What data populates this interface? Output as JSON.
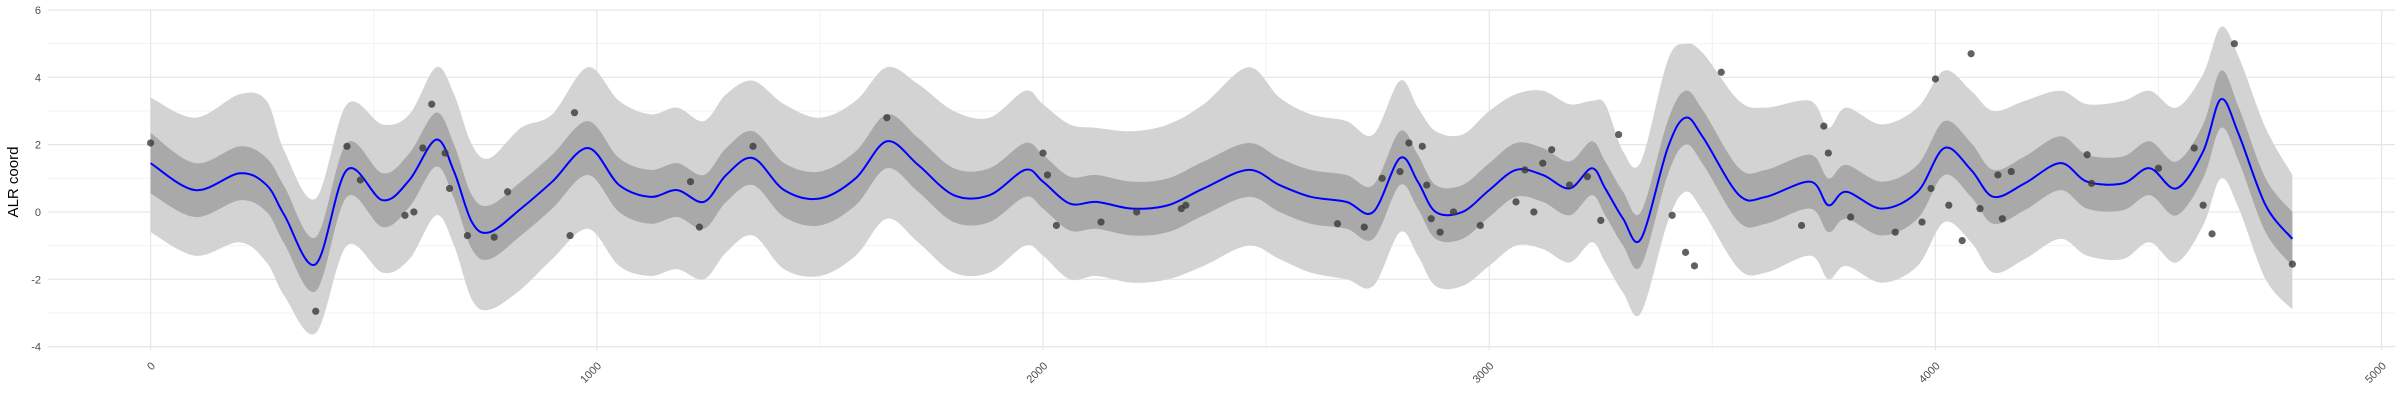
{
  "chart_data": {
    "type": "line",
    "title": "",
    "xlabel": "",
    "ylabel": "ALR coord",
    "xlim": [
      -230,
      5030
    ],
    "ylim": [
      -4.1,
      6.0
    ],
    "x_ticks": [
      0,
      1000,
      2000,
      3000,
      4000,
      5000
    ],
    "x_tick_labels": [
      "0",
      "1000",
      "2000",
      "3000",
      "4000",
      "5000"
    ],
    "y_ticks": [
      -4,
      -2,
      0,
      2,
      4,
      6
    ],
    "y_tick_labels": [
      "-4",
      "-2",
      "0",
      "2",
      "4",
      "6"
    ],
    "grid": true,
    "legend": "none",
    "colors": {
      "mean_line": "#0000ff",
      "inner_band": "#a9a9a9",
      "outer_band": "#d3d3d3",
      "points": "#3a3a3a",
      "grid_major": "#e6e6e6",
      "grid_minor": "#f2f2f2"
    },
    "series": [
      {
        "kind": "mean_with_bands",
        "x": [
          0,
          100,
          200,
          260,
          300,
          370,
          440,
          520,
          580,
          640,
          680,
          720,
          760,
          830,
          900,
          980,
          1050,
          1120,
          1180,
          1240,
          1290,
          1350,
          1420,
          1500,
          1580,
          1650,
          1720,
          1800,
          1880,
          1960,
          2000,
          2060,
          2120,
          2200,
          2280,
          2360,
          2460,
          2530,
          2600,
          2680,
          2740,
          2800,
          2840,
          2880,
          2940,
          3000,
          3060,
          3120,
          3180,
          3230,
          3260,
          3300,
          3340,
          3400,
          3440,
          3480,
          3560,
          3620,
          3720,
          3760,
          3800,
          3880,
          3960,
          4020,
          4080,
          4130,
          4200,
          4280,
          4340,
          4420,
          4480,
          4540,
          4600,
          4640,
          4680,
          4740,
          4800
        ],
        "mean": [
          1.45,
          0.65,
          1.15,
          0.8,
          -0.1,
          -1.55,
          1.25,
          0.35,
          0.95,
          2.15,
          1.2,
          -0.3,
          -0.6,
          0.1,
          0.9,
          1.9,
          0.8,
          0.45,
          0.65,
          0.3,
          1.1,
          1.6,
          0.65,
          0.4,
          1.0,
          2.1,
          1.4,
          0.5,
          0.5,
          1.25,
          0.9,
          0.25,
          0.3,
          0.1,
          0.2,
          0.7,
          1.25,
          0.8,
          0.45,
          0.3,
          0.0,
          1.6,
          0.9,
          0.0,
          0.0,
          0.65,
          1.25,
          1.1,
          0.7,
          1.3,
          0.7,
          -0.2,
          -0.8,
          1.9,
          2.8,
          2.2,
          0.5,
          0.45,
          0.9,
          0.2,
          0.6,
          0.1,
          0.6,
          1.9,
          1.25,
          0.45,
          0.85,
          1.45,
          0.9,
          0.85,
          1.3,
          0.7,
          1.8,
          3.35,
          2.3,
          0.2,
          -0.8
        ],
        "inner_lo": [
          0.55,
          -0.15,
          0.35,
          0.0,
          -0.95,
          -2.35,
          0.45,
          -0.45,
          0.15,
          1.35,
          0.4,
          -1.1,
          -1.4,
          -0.7,
          0.1,
          1.1,
          0.0,
          -0.35,
          -0.15,
          -0.5,
          0.3,
          0.8,
          -0.15,
          -0.4,
          0.2,
          1.3,
          0.6,
          -0.3,
          -0.3,
          0.45,
          0.1,
          -0.55,
          -0.5,
          -0.7,
          -0.6,
          -0.1,
          0.45,
          0.0,
          -0.35,
          -0.5,
          -0.8,
          0.8,
          0.1,
          -0.8,
          -0.8,
          -0.15,
          0.45,
          0.3,
          -0.1,
          0.5,
          -0.1,
          -1.0,
          -1.6,
          1.1,
          2.0,
          1.4,
          -0.3,
          -0.35,
          0.1,
          -0.6,
          -0.2,
          -0.7,
          -0.2,
          1.1,
          0.45,
          -0.35,
          0.05,
          0.65,
          0.1,
          0.05,
          0.5,
          -0.1,
          1.0,
          2.5,
          1.5,
          -0.6,
          -1.6
        ],
        "inner_hi": [
          2.35,
          1.45,
          1.95,
          1.6,
          0.75,
          -0.75,
          2.05,
          1.15,
          1.75,
          2.95,
          2.0,
          0.5,
          0.2,
          0.9,
          1.7,
          2.7,
          1.6,
          1.25,
          1.45,
          1.1,
          1.9,
          2.4,
          1.45,
          1.2,
          1.8,
          2.9,
          2.2,
          1.3,
          1.3,
          2.05,
          1.7,
          1.05,
          1.1,
          0.9,
          1.0,
          1.5,
          2.05,
          1.6,
          1.25,
          1.1,
          0.8,
          2.4,
          1.7,
          0.8,
          0.8,
          1.45,
          2.05,
          1.9,
          1.5,
          2.1,
          1.5,
          0.6,
          0.0,
          2.7,
          3.6,
          3.0,
          1.3,
          1.25,
          1.7,
          1.0,
          1.4,
          0.9,
          1.4,
          2.7,
          2.05,
          1.25,
          1.65,
          2.25,
          1.7,
          1.65,
          2.1,
          1.5,
          2.6,
          4.2,
          3.1,
          1.0,
          0.0
        ],
        "outer_lo": [
          -0.6,
          -1.3,
          -0.9,
          -1.5,
          -2.5,
          -3.6,
          -1.0,
          -1.8,
          -1.4,
          -0.1,
          -1.0,
          -2.6,
          -2.9,
          -2.3,
          -1.4,
          -0.5,
          -1.6,
          -1.9,
          -1.7,
          -2.0,
          -1.2,
          -0.7,
          -1.7,
          -1.9,
          -1.3,
          -0.2,
          -0.9,
          -1.8,
          -1.8,
          -1.0,
          -1.3,
          -2.0,
          -1.9,
          -2.1,
          -2.0,
          -1.6,
          -1.0,
          -1.4,
          -1.8,
          -2.0,
          -2.2,
          -0.6,
          -1.3,
          -2.2,
          -2.2,
          -1.6,
          -1.0,
          -1.1,
          -1.5,
          -0.9,
          -1.5,
          -2.4,
          -3.0,
          -0.3,
          0.6,
          0.0,
          -1.7,
          -1.8,
          -1.3,
          -2.0,
          -1.6,
          -2.1,
          -1.6,
          -0.3,
          -0.9,
          -1.8,
          -1.4,
          -0.8,
          -1.3,
          -1.4,
          -0.9,
          -1.5,
          -0.4,
          1.0,
          0.1,
          -2.0,
          -2.9
        ],
        "outer_hi": [
          3.4,
          2.8,
          3.5,
          3.3,
          1.8,
          0.4,
          3.2,
          2.6,
          2.9,
          4.3,
          3.5,
          2.0,
          1.6,
          2.5,
          2.9,
          4.3,
          3.3,
          2.9,
          3.1,
          2.7,
          3.5,
          3.9,
          3.2,
          2.8,
          3.3,
          4.3,
          3.8,
          3.0,
          2.8,
          3.6,
          3.2,
          2.6,
          2.5,
          2.4,
          2.6,
          3.2,
          4.3,
          3.4,
          2.9,
          2.7,
          2.3,
          3.9,
          3.1,
          2.4,
          2.3,
          3.0,
          3.5,
          3.6,
          3.2,
          3.3,
          3.2,
          1.8,
          1.5,
          4.5,
          5.0,
          4.7,
          3.3,
          3.1,
          3.3,
          2.5,
          3.1,
          2.6,
          3.1,
          4.2,
          3.6,
          3.0,
          3.3,
          3.6,
          3.2,
          3.3,
          3.6,
          3.1,
          4.1,
          5.5,
          4.6,
          2.5,
          1.1
        ]
      },
      {
        "kind": "points",
        "x": [
          0,
          370,
          440,
          470,
          570,
          590,
          610,
          630,
          660,
          670,
          710,
          770,
          800,
          940,
          950,
          1210,
          1230,
          1350,
          1650,
          2000,
          2010,
          2030,
          2130,
          2210,
          2310,
          2320,
          2660,
          2720,
          2760,
          2800,
          2820,
          2850,
          2860,
          2870,
          2890,
          2920,
          2980,
          3060,
          3080,
          3100,
          3120,
          3140,
          3180,
          3220,
          3250,
          3290,
          3410,
          3440,
          3460,
          3520,
          3700,
          3750,
          3760,
          3810,
          3910,
          3970,
          3990,
          4000,
          4030,
          4060,
          4080,
          4100,
          4140,
          4150,
          4170,
          4340,
          4350,
          4500,
          4580,
          4600,
          4620,
          4670,
          4800
        ],
        "y": [
          2.05,
          -2.95,
          1.95,
          0.95,
          -0.1,
          0.0,
          1.9,
          3.2,
          1.75,
          0.7,
          -0.7,
          -0.75,
          0.6,
          -0.7,
          2.95,
          0.9,
          -0.45,
          1.95,
          2.8,
          1.75,
          1.1,
          -0.4,
          -0.3,
          0.0,
          0.1,
          0.2,
          -0.35,
          -0.45,
          1.0,
          1.2,
          2.05,
          1.95,
          0.8,
          -0.2,
          -0.6,
          0.0,
          -0.4,
          0.3,
          1.25,
          0.0,
          1.45,
          1.85,
          0.8,
          1.05,
          -0.25,
          2.3,
          -0.1,
          -1.2,
          -1.6,
          4.15,
          -0.4,
          2.55,
          1.75,
          -0.15,
          -0.6,
          -0.3,
          0.7,
          3.95,
          0.2,
          -0.85,
          4.7,
          0.1,
          1.1,
          -0.2,
          1.2,
          1.7,
          0.85,
          1.3,
          1.9,
          0.2,
          -0.65,
          5.0,
          -1.55
        ]
      }
    ]
  }
}
